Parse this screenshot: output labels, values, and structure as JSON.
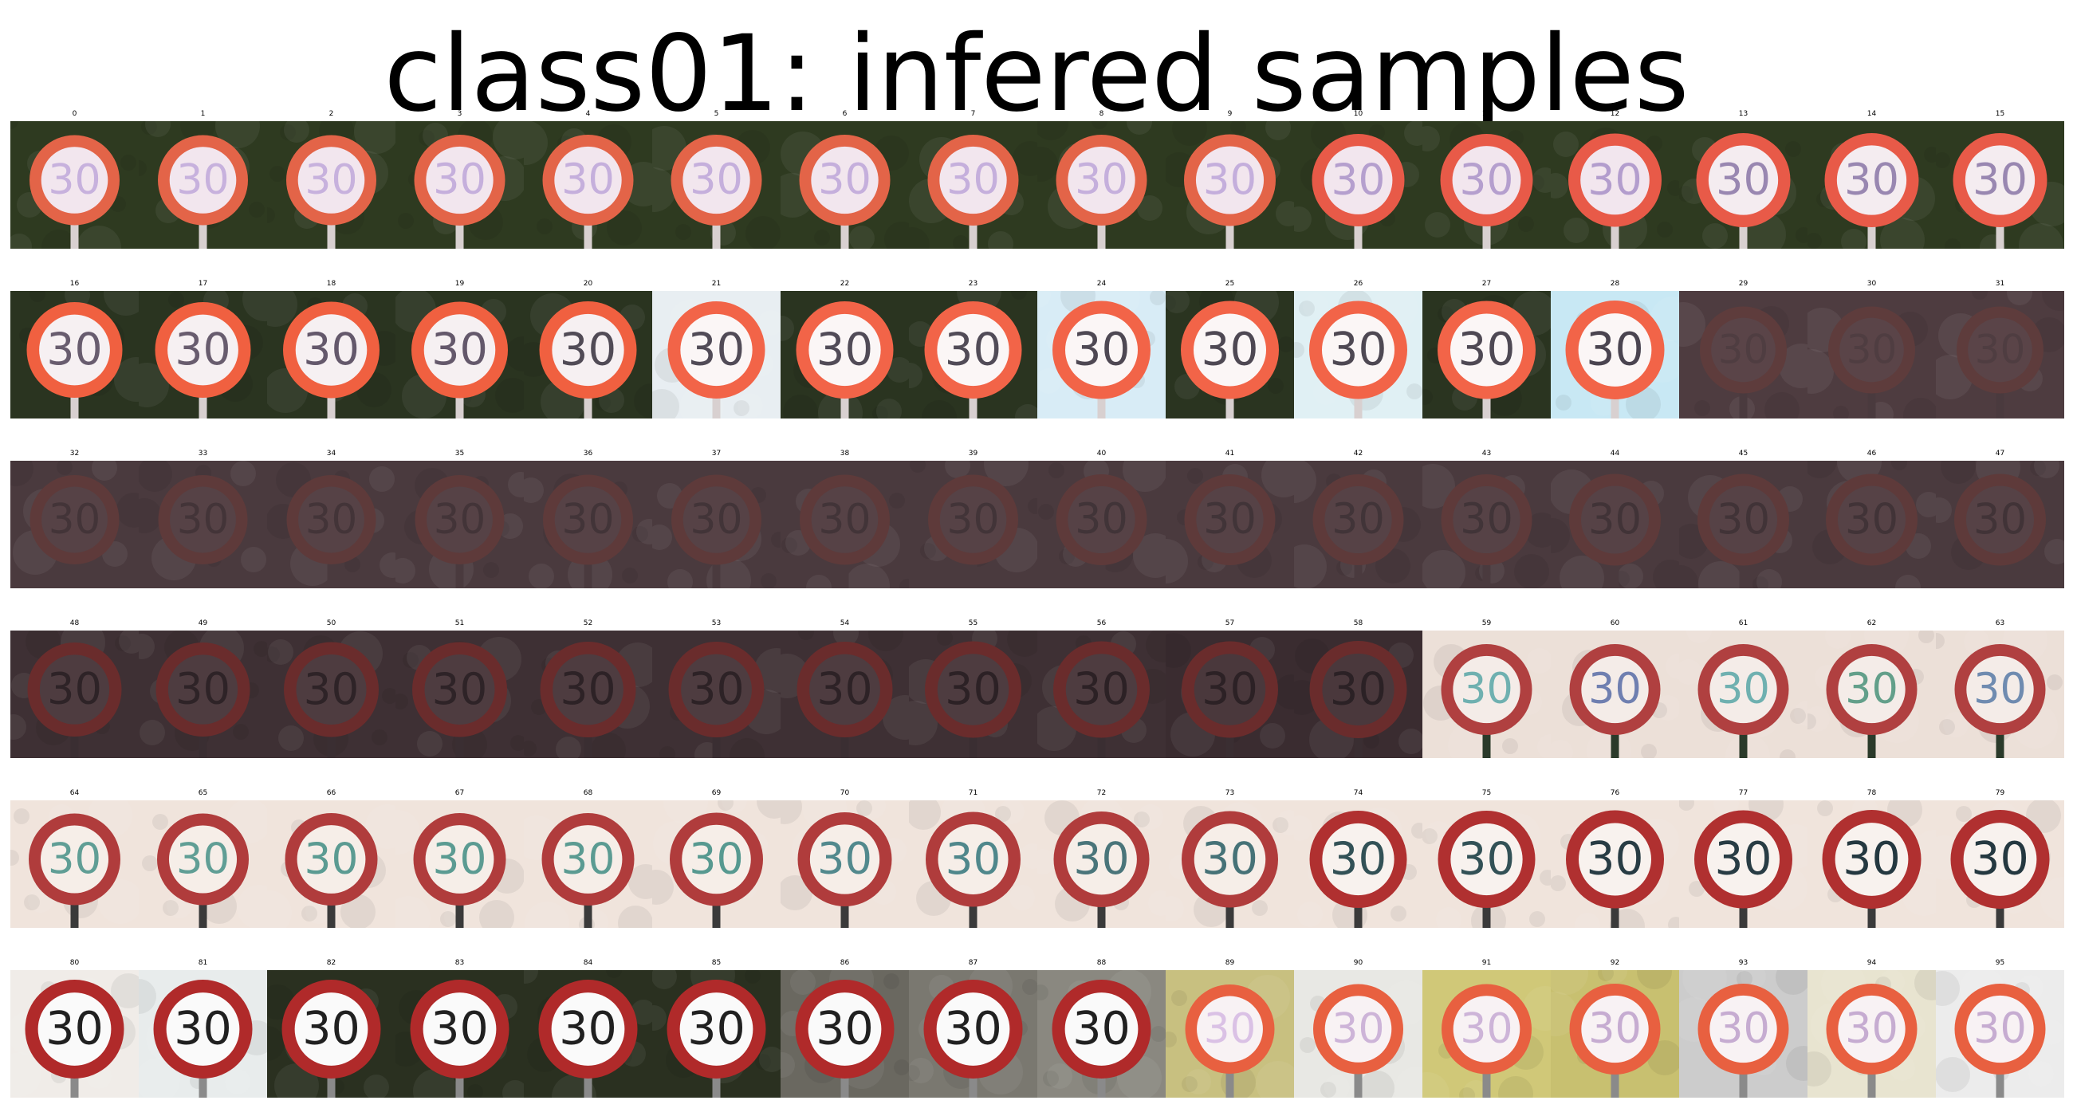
{
  "title": "class01: infered samples",
  "sign_text": "30",
  "samples": [
    {
      "label": "0",
      "bg": "#2e3a20",
      "sign": "#f2e6ee",
      "ring": "#e36448",
      "text": "#b9a0d8",
      "pole": "#d8d0d0",
      "clarity": 0.45
    },
    {
      "label": "1",
      "bg": "#2e3a20",
      "sign": "#f2e6ee",
      "ring": "#e36448",
      "text": "#b9a0d8",
      "pole": "#d8d0d0",
      "clarity": 0.45
    },
    {
      "label": "2",
      "bg": "#2e3a20",
      "sign": "#f2e6ee",
      "ring": "#e36448",
      "text": "#b9a0d8",
      "pole": "#d8d0d0",
      "clarity": 0.45
    },
    {
      "label": "3",
      "bg": "#2e3a20",
      "sign": "#f2e6ee",
      "ring": "#e36448",
      "text": "#b9a0d8",
      "pole": "#d8d0d0",
      "clarity": 0.5
    },
    {
      "label": "4",
      "bg": "#2e3a20",
      "sign": "#f2e6ee",
      "ring": "#e36448",
      "text": "#b9a0d8",
      "pole": "#d8d0d0",
      "clarity": 0.5
    },
    {
      "label": "5",
      "bg": "#2e3a20",
      "sign": "#f2e6ee",
      "ring": "#e36448",
      "text": "#b9a0d8",
      "pole": "#d8d0d0",
      "clarity": 0.5
    },
    {
      "label": "6",
      "bg": "#2e3a20",
      "sign": "#f2e6ee",
      "ring": "#e36448",
      "text": "#b9a0d8",
      "pole": "#d8d0d0",
      "clarity": 0.5
    },
    {
      "label": "7",
      "bg": "#2e3a20",
      "sign": "#f2e6ee",
      "ring": "#e36448",
      "text": "#b9a0d8",
      "pole": "#d8d0d0",
      "clarity": 0.5
    },
    {
      "label": "8",
      "bg": "#2e3a20",
      "sign": "#f2e6ee",
      "ring": "#e36448",
      "text": "#b9a0d8",
      "pole": "#d8d0d0",
      "clarity": 0.5
    },
    {
      "label": "9",
      "bg": "#2e3a20",
      "sign": "#f2e6ee",
      "ring": "#e36448",
      "text": "#b9a0d8",
      "pole": "#d8d0d0",
      "clarity": 0.55
    },
    {
      "label": "10",
      "bg": "#2e3a20",
      "sign": "#f2e6ee",
      "ring": "#e85a48",
      "text": "#a890c8",
      "pole": "#d8d0d0",
      "clarity": 0.6
    },
    {
      "label": "11",
      "bg": "#2e3a20",
      "sign": "#f2e6ee",
      "ring": "#e85a48",
      "text": "#a890c8",
      "pole": "#d8d0d0",
      "clarity": 0.6
    },
    {
      "label": "12",
      "bg": "#2e3a20",
      "sign": "#f2e6ee",
      "ring": "#e85a48",
      "text": "#a890c8",
      "pole": "#d8d0d0",
      "clarity": 0.65
    },
    {
      "label": "13",
      "bg": "#2e3a20",
      "sign": "#f4ecf0",
      "ring": "#e85a48",
      "text": "#8c78a8",
      "pole": "#d8d0d0",
      "clarity": 0.7
    },
    {
      "label": "14",
      "bg": "#2e3a20",
      "sign": "#f4ecf0",
      "ring": "#e85a48",
      "text": "#8c78a8",
      "pole": "#d8d0d0",
      "clarity": 0.7
    },
    {
      "label": "15",
      "bg": "#2e3a20",
      "sign": "#f4ecf0",
      "ring": "#e85a48",
      "text": "#8c78a8",
      "pole": "#d8d0d0",
      "clarity": 0.7
    },
    {
      "label": "16",
      "bg": "#2a3420",
      "sign": "#f6f0f2",
      "ring": "#f06040",
      "text": "#5a4e62",
      "pole": "#d8d0d0",
      "clarity": 0.8
    },
    {
      "label": "17",
      "bg": "#2a3420",
      "sign": "#f6f0f2",
      "ring": "#f06040",
      "text": "#5a4e62",
      "pole": "#d8d0d0",
      "clarity": 0.8
    },
    {
      "label": "18",
      "bg": "#2a3420",
      "sign": "#f6f0f2",
      "ring": "#f06040",
      "text": "#5a4e62",
      "pole": "#d8d0d0",
      "clarity": 0.85
    },
    {
      "label": "19",
      "bg": "#2a3420",
      "sign": "#f6f0f2",
      "ring": "#f06040",
      "text": "#5a4e62",
      "pole": "#d8d0d0",
      "clarity": 0.85
    },
    {
      "label": "20",
      "bg": "#2a3420",
      "sign": "#f6f0f2",
      "ring": "#f06040",
      "text": "#4a4450",
      "pole": "#d8d0d0",
      "clarity": 0.9
    },
    {
      "label": "21",
      "bg": "#e8eef2",
      "sign": "#fbf6f6",
      "ring": "#f26448",
      "text": "#4a4450",
      "pole": "#d8d0d0",
      "clarity": 0.9
    },
    {
      "label": "22",
      "bg": "#2a3420",
      "sign": "#fbf6f6",
      "ring": "#f26448",
      "text": "#4a4450",
      "pole": "#d8d0d0",
      "clarity": 0.9
    },
    {
      "label": "23",
      "bg": "#2a3420",
      "sign": "#fbf6f6",
      "ring": "#f26448",
      "text": "#4a4450",
      "pole": "#d8d0d0",
      "clarity": 0.9
    },
    {
      "label": "24",
      "bg": "#d8ecf6",
      "sign": "#fbf6f6",
      "ring": "#f26448",
      "text": "#4a4450",
      "pole": "#d8d0d0",
      "clarity": 0.95
    },
    {
      "label": "25",
      "bg": "#2a3420",
      "sign": "#fbf6f6",
      "ring": "#f26448",
      "text": "#4a4450",
      "pole": "#d8d0d0",
      "clarity": 0.95
    },
    {
      "label": "26",
      "bg": "#e0f0f4",
      "sign": "#fbf6f6",
      "ring": "#f26448",
      "text": "#4a4450",
      "pole": "#d8d0d0",
      "clarity": 0.95
    },
    {
      "label": "27",
      "bg": "#2a3420",
      "sign": "#fbf6f6",
      "ring": "#f26448",
      "text": "#4a4450",
      "pole": "#d8d0d0",
      "clarity": 0.95
    },
    {
      "label": "28",
      "bg": "#c8e8f4",
      "sign": "#fbf6f6",
      "ring": "#f26448",
      "text": "#4a4450",
      "pole": "#d8d0d0",
      "clarity": 1.0
    },
    {
      "label": "29",
      "bg": "#4e3c40",
      "sign": "#5a4448",
      "ring": "#5e3c3c",
      "text": "#4a3a3e",
      "pole": "#4a3a3e",
      "clarity": 0.25
    },
    {
      "label": "30",
      "bg": "#4e3c40",
      "sign": "#5a4448",
      "ring": "#5e3c3c",
      "text": "#4a3a3e",
      "pole": "#4a3a3e",
      "clarity": 0.25
    },
    {
      "label": "31",
      "bg": "#4e3c40",
      "sign": "#5a4448",
      "ring": "#5e3c3c",
      "text": "#4a3a3e",
      "pole": "#4a3a3e",
      "clarity": 0.25
    },
    {
      "label": "32",
      "bg": "#4a3a3e",
      "sign": "#564246",
      "ring": "#5e3a3a",
      "text": "#3c3034",
      "pole": "#4a3a3e",
      "clarity": 0.4
    },
    {
      "label": "33",
      "bg": "#4a3a3e",
      "sign": "#564246",
      "ring": "#5e3a3a",
      "text": "#3c3034",
      "pole": "#4a3a3e",
      "clarity": 0.4
    },
    {
      "label": "34",
      "bg": "#4a3a3e",
      "sign": "#564246",
      "ring": "#5e3a3a",
      "text": "#3c3034",
      "pole": "#4a3a3e",
      "clarity": 0.4
    },
    {
      "label": "35",
      "bg": "#4a3a3e",
      "sign": "#564246",
      "ring": "#5e3a3a",
      "text": "#3c3034",
      "pole": "#4a3a3e",
      "clarity": 0.4
    },
    {
      "label": "36",
      "bg": "#4a3a3e",
      "sign": "#564246",
      "ring": "#5e3a3a",
      "text": "#3c3034",
      "pole": "#4a3a3e",
      "clarity": 0.45
    },
    {
      "label": "37",
      "bg": "#4a3a3e",
      "sign": "#564246",
      "ring": "#5e3a3a",
      "text": "#3c3034",
      "pole": "#4a3a3e",
      "clarity": 0.45
    },
    {
      "label": "38",
      "bg": "#4a3a3e",
      "sign": "#564246",
      "ring": "#5e3a3a",
      "text": "#3c3034",
      "pole": "#4a3a3e",
      "clarity": 0.45
    },
    {
      "label": "39",
      "bg": "#4a3a3e",
      "sign": "#564246",
      "ring": "#5e3a3a",
      "text": "#3c3034",
      "pole": "#4a3a3e",
      "clarity": 0.45
    },
    {
      "label": "40",
      "bg": "#4a3a3e",
      "sign": "#564246",
      "ring": "#5e3a3a",
      "text": "#3c3034",
      "pole": "#4a3a3e",
      "clarity": 0.5
    },
    {
      "label": "41",
      "bg": "#4a3a3e",
      "sign": "#564246",
      "ring": "#5e3a3a",
      "text": "#3c3034",
      "pole": "#4a3a3e",
      "clarity": 0.5
    },
    {
      "label": "42",
      "bg": "#4a3a3e",
      "sign": "#564246",
      "ring": "#5e3a3a",
      "text": "#3c3034",
      "pole": "#4a3a3e",
      "clarity": 0.5
    },
    {
      "label": "43",
      "bg": "#4a3a3e",
      "sign": "#564246",
      "ring": "#5e3a3a",
      "text": "#3c3034",
      "pole": "#4a3a3e",
      "clarity": 0.5
    },
    {
      "label": "44",
      "bg": "#4a3a3e",
      "sign": "#564246",
      "ring": "#5e3a3a",
      "text": "#3c3034",
      "pole": "#4a3a3e",
      "clarity": 0.55
    },
    {
      "label": "45",
      "bg": "#4a3a3e",
      "sign": "#564246",
      "ring": "#5e3a3a",
      "text": "#3c3034",
      "pole": "#4a3a3e",
      "clarity": 0.55
    },
    {
      "label": "46",
      "bg": "#4a3a3e",
      "sign": "#564246",
      "ring": "#5e3a3a",
      "text": "#3c3034",
      "pole": "#4a3a3e",
      "clarity": 0.55
    },
    {
      "label": "47",
      "bg": "#4a3a3e",
      "sign": "#564246",
      "ring": "#5e3a3a",
      "text": "#3c3034",
      "pole": "#4a3a3e",
      "clarity": 0.55
    },
    {
      "label": "48",
      "bg": "#3e3034",
      "sign": "#4e3c40",
      "ring": "#6a2c2c",
      "text": "#2a2024",
      "pole": "#3a2e32",
      "clarity": 0.7
    },
    {
      "label": "49",
      "bg": "#3e3034",
      "sign": "#4e3c40",
      "ring": "#6a2c2c",
      "text": "#2a2024",
      "pole": "#3a2e32",
      "clarity": 0.7
    },
    {
      "label": "50",
      "bg": "#3e3034",
      "sign": "#4e3c40",
      "ring": "#6a2c2c",
      "text": "#2a2024",
      "pole": "#3a2e32",
      "clarity": 0.75
    },
    {
      "label": "51",
      "bg": "#3e3034",
      "sign": "#4e3c40",
      "ring": "#6a2c2c",
      "text": "#2a2024",
      "pole": "#3a2e32",
      "clarity": 0.75
    },
    {
      "label": "52",
      "bg": "#3e3034",
      "sign": "#4e3c40",
      "ring": "#6a2c2c",
      "text": "#2a2024",
      "pole": "#3a2e32",
      "clarity": 0.8
    },
    {
      "label": "53",
      "bg": "#3e3034",
      "sign": "#4e3c40",
      "ring": "#6a2c2c",
      "text": "#2a2024",
      "pole": "#3a2e32",
      "clarity": 0.8
    },
    {
      "label": "54",
      "bg": "#3e3034",
      "sign": "#4e3c40",
      "ring": "#6a2c2c",
      "text": "#2a2024",
      "pole": "#3a2e32",
      "clarity": 0.8
    },
    {
      "label": "55",
      "bg": "#3e3034",
      "sign": "#4e3c40",
      "ring": "#6a2c2c",
      "text": "#2a2024",
      "pole": "#3a2e32",
      "clarity": 0.85
    },
    {
      "label": "56",
      "bg": "#3e3034",
      "sign": "#4e3c40",
      "ring": "#6a2c2c",
      "text": "#2a2024",
      "pole": "#3a2e32",
      "clarity": 0.85
    },
    {
      "label": "57",
      "bg": "#3a2c30",
      "sign": "#4a383c",
      "ring": "#6a2c2c",
      "text": "#2a2024",
      "pole": "#3a2e32",
      "clarity": 0.85
    },
    {
      "label": "58",
      "bg": "#3a2c30",
      "sign": "#4a383c",
      "ring": "#6a2c2c",
      "text": "#2a2024",
      "pole": "#3a2e32",
      "clarity": 0.9
    },
    {
      "label": "59",
      "bg": "#ece0d8",
      "sign": "#f4ece8",
      "ring": "#b04040",
      "text": "#4aa0a0",
      "pole": "#2a3a2a",
      "clarity": 0.5
    },
    {
      "label": "60",
      "bg": "#ece0d8",
      "sign": "#f4ece8",
      "ring": "#b04040",
      "text": "#4a60a0",
      "pole": "#2a3a2a",
      "clarity": 0.5
    },
    {
      "label": "61",
      "bg": "#ece0d8",
      "sign": "#f4ece8",
      "ring": "#b04040",
      "text": "#4aa0a0",
      "pole": "#2a3a2a",
      "clarity": 0.5
    },
    {
      "label": "62",
      "bg": "#ece0d8",
      "sign": "#f4ece8",
      "ring": "#b04040",
      "text": "#3a8a70",
      "pole": "#2a3a2a",
      "clarity": 0.5
    },
    {
      "label": "63",
      "bg": "#ece0d8",
      "sign": "#f4ece8",
      "ring": "#b04040",
      "text": "#4a70a0",
      "pole": "#2a3a2a",
      "clarity": 0.5
    },
    {
      "label": "64",
      "bg": "#f0e4dc",
      "sign": "#f6eee8",
      "ring": "#b03c3c",
      "text": "#3a8a80",
      "pole": "#3a3a3a",
      "clarity": 0.55
    },
    {
      "label": "65",
      "bg": "#f0e4dc",
      "sign": "#f6eee8",
      "ring": "#b03c3c",
      "text": "#3a8a80",
      "pole": "#3a3a3a",
      "clarity": 0.55
    },
    {
      "label": "66",
      "bg": "#f0e4dc",
      "sign": "#f6eee8",
      "ring": "#b03c3c",
      "text": "#3a8a80",
      "pole": "#3a3a3a",
      "clarity": 0.6
    },
    {
      "label": "67",
      "bg": "#f0e4dc",
      "sign": "#f6eee8",
      "ring": "#b03c3c",
      "text": "#3a8a80",
      "pole": "#3a3a3a",
      "clarity": 0.6
    },
    {
      "label": "68",
      "bg": "#f0e4dc",
      "sign": "#f6eee8",
      "ring": "#b03c3c",
      "text": "#3a8a80",
      "pole": "#3a3a3a",
      "clarity": 0.6
    },
    {
      "label": "69",
      "bg": "#f0e4dc",
      "sign": "#f6eee8",
      "ring": "#b03c3c",
      "text": "#3a8a80",
      "pole": "#3a3a3a",
      "clarity": 0.65
    },
    {
      "label": "70",
      "bg": "#f0e4dc",
      "sign": "#f6eee8",
      "ring": "#b03c3c",
      "text": "#3a7a80",
      "pole": "#3a3a3a",
      "clarity": 0.7
    },
    {
      "label": "71",
      "bg": "#f0e4dc",
      "sign": "#f6eee8",
      "ring": "#b03c3c",
      "text": "#3a7a80",
      "pole": "#3a3a3a",
      "clarity": 0.75
    },
    {
      "label": "72",
      "bg": "#f0e4dc",
      "sign": "#f6eee8",
      "ring": "#b03c3c",
      "text": "#3a6a70",
      "pole": "#3a3a3a",
      "clarity": 0.8
    },
    {
      "label": "73",
      "bg": "#f0e4dc",
      "sign": "#f6eee8",
      "ring": "#b03c3c",
      "text": "#3a6a70",
      "pole": "#3a3a3a",
      "clarity": 0.85
    },
    {
      "label": "74",
      "bg": "#f0e4dc",
      "sign": "#f8f2ee",
      "ring": "#b03030",
      "text": "#2a4a50",
      "pole": "#3a3a3a",
      "clarity": 0.9
    },
    {
      "label": "75",
      "bg": "#f0e4dc",
      "sign": "#f8f2ee",
      "ring": "#b03030",
      "text": "#2a4a50",
      "pole": "#3a3a3a",
      "clarity": 0.9
    },
    {
      "label": "76",
      "bg": "#f0e4dc",
      "sign": "#f8f2ee",
      "ring": "#b03030",
      "text": "#243840",
      "pole": "#3a3a3a",
      "clarity": 0.95
    },
    {
      "label": "77",
      "bg": "#f0e4dc",
      "sign": "#f8f2ee",
      "ring": "#b03030",
      "text": "#243840",
      "pole": "#3a3a3a",
      "clarity": 0.95
    },
    {
      "label": "78",
      "bg": "#f0e4dc",
      "sign": "#f8f2ee",
      "ring": "#b03030",
      "text": "#243840",
      "pole": "#3a3a3a",
      "clarity": 1.0
    },
    {
      "label": "79",
      "bg": "#f0e4dc",
      "sign": "#f8f2ee",
      "ring": "#b03030",
      "text": "#243840",
      "pole": "#3a3a3a",
      "clarity": 1.0
    },
    {
      "label": "80",
      "bg": "#f0ece8",
      "sign": "#fafafa",
      "ring": "#b02a2a",
      "text": "#202020",
      "pole": "#8a8a8a",
      "clarity": 1.0
    },
    {
      "label": "81",
      "bg": "#e8ecec",
      "sign": "#fafafa",
      "ring": "#b02a2a",
      "text": "#202020",
      "pole": "#8a8a8a",
      "clarity": 1.0
    },
    {
      "label": "82",
      "bg": "#2a3020",
      "sign": "#fafafa",
      "ring": "#b02a2a",
      "text": "#202020",
      "pole": "#8a8a8a",
      "clarity": 1.0
    },
    {
      "label": "83",
      "bg": "#2a3020",
      "sign": "#fafafa",
      "ring": "#b02a2a",
      "text": "#202020",
      "pole": "#8a8a8a",
      "clarity": 1.0
    },
    {
      "label": "84",
      "bg": "#2a3020",
      "sign": "#fafafa",
      "ring": "#b02a2a",
      "text": "#202020",
      "pole": "#8a8a8a",
      "clarity": 1.0
    },
    {
      "label": "85",
      "bg": "#2a3020",
      "sign": "#fafafa",
      "ring": "#b02a2a",
      "text": "#202020",
      "pole": "#8a8a8a",
      "clarity": 1.0
    },
    {
      "label": "86",
      "bg": "#6a6860",
      "sign": "#fafafa",
      "ring": "#b02a2a",
      "text": "#202020",
      "pole": "#8a8a8a",
      "clarity": 1.0
    },
    {
      "label": "87",
      "bg": "#7a7870",
      "sign": "#fafafa",
      "ring": "#b02a2a",
      "text": "#202020",
      "pole": "#8a8a8a",
      "clarity": 1.0
    },
    {
      "label": "88",
      "bg": "#8a8880",
      "sign": "#fafafa",
      "ring": "#b02a2a",
      "text": "#202020",
      "pole": "#8a8a8a",
      "clarity": 1.0
    },
    {
      "label": "89",
      "bg": "#c8c080",
      "sign": "#f8f2f4",
      "ring": "#e86040",
      "text": "#d0b0e0",
      "pole": "#8a8a8a",
      "clarity": 0.4
    },
    {
      "label": "90",
      "bg": "#e8e8e4",
      "sign": "#f8f2f4",
      "ring": "#e86040",
      "text": "#c0a0d0",
      "pole": "#8a8a8a",
      "clarity": 0.45
    },
    {
      "label": "91",
      "bg": "#d0c878",
      "sign": "#f8f2f4",
      "ring": "#e86040",
      "text": "#c0a0d0",
      "pole": "#8a8a8a",
      "clarity": 0.45
    },
    {
      "label": "92",
      "bg": "#c8c070",
      "sign": "#f8f2f4",
      "ring": "#e86040",
      "text": "#b898c8",
      "pole": "#8a8a8a",
      "clarity": 0.5
    },
    {
      "label": "93",
      "bg": "#ecec e8",
      "sign": "#f8f2f4",
      "ring": "#e86040",
      "text": "#b898c8",
      "pole": "#8a8a8a",
      "clarity": 0.5
    },
    {
      "label": "94",
      "bg": "#e8e4d0",
      "sign": "#f8f2f4",
      "ring": "#e86040",
      "text": "#b898c8",
      "pole": "#8a8a8a",
      "clarity": 0.5
    },
    {
      "label": "95",
      "bg": "#ececec",
      "sign": "#f8f2f4",
      "ring": "#e86040",
      "text": "#b898c8",
      "pole": "#8a8a8a",
      "clarity": 0.5
    }
  ]
}
